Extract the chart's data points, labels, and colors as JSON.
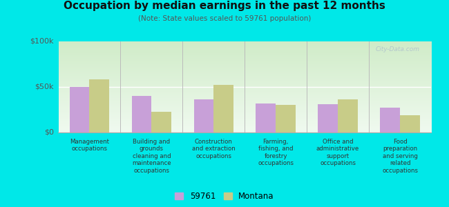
{
  "title": "Occupation by median earnings in the past 12 months",
  "subtitle": "(Note: State values scaled to 59761 population)",
  "categories": [
    "Management\noccupations",
    "Building and\ngrounds\ncleaning and\nmaintenance\noccupations",
    "Construction\nand extraction\noccupations",
    "Farming,\nfishing, and\nforestry\noccupations",
    "Office and\nadministrative\nsupport\noccupations",
    "Food\npreparation\nand serving\nrelated\noccupations"
  ],
  "values_59761": [
    50000,
    40000,
    36000,
    32000,
    31000,
    27000
  ],
  "values_montana": [
    58000,
    23000,
    52000,
    30000,
    36000,
    19000
  ],
  "color_59761": "#c8a0d8",
  "color_montana": "#c8cc88",
  "ylim": [
    0,
    100000
  ],
  "yticks": [
    0,
    50000,
    100000
  ],
  "ytick_labels": [
    "$0",
    "$50k",
    "$100k"
  ],
  "outer_background": "#00e8e8",
  "plot_bg_top": "#d0ecc8",
  "plot_bg_bottom": "#f0faf0",
  "legend_label_59761": "59761",
  "legend_label_montana": "Montana",
  "watermark": "City-Data.com",
  "bar_width": 0.32
}
